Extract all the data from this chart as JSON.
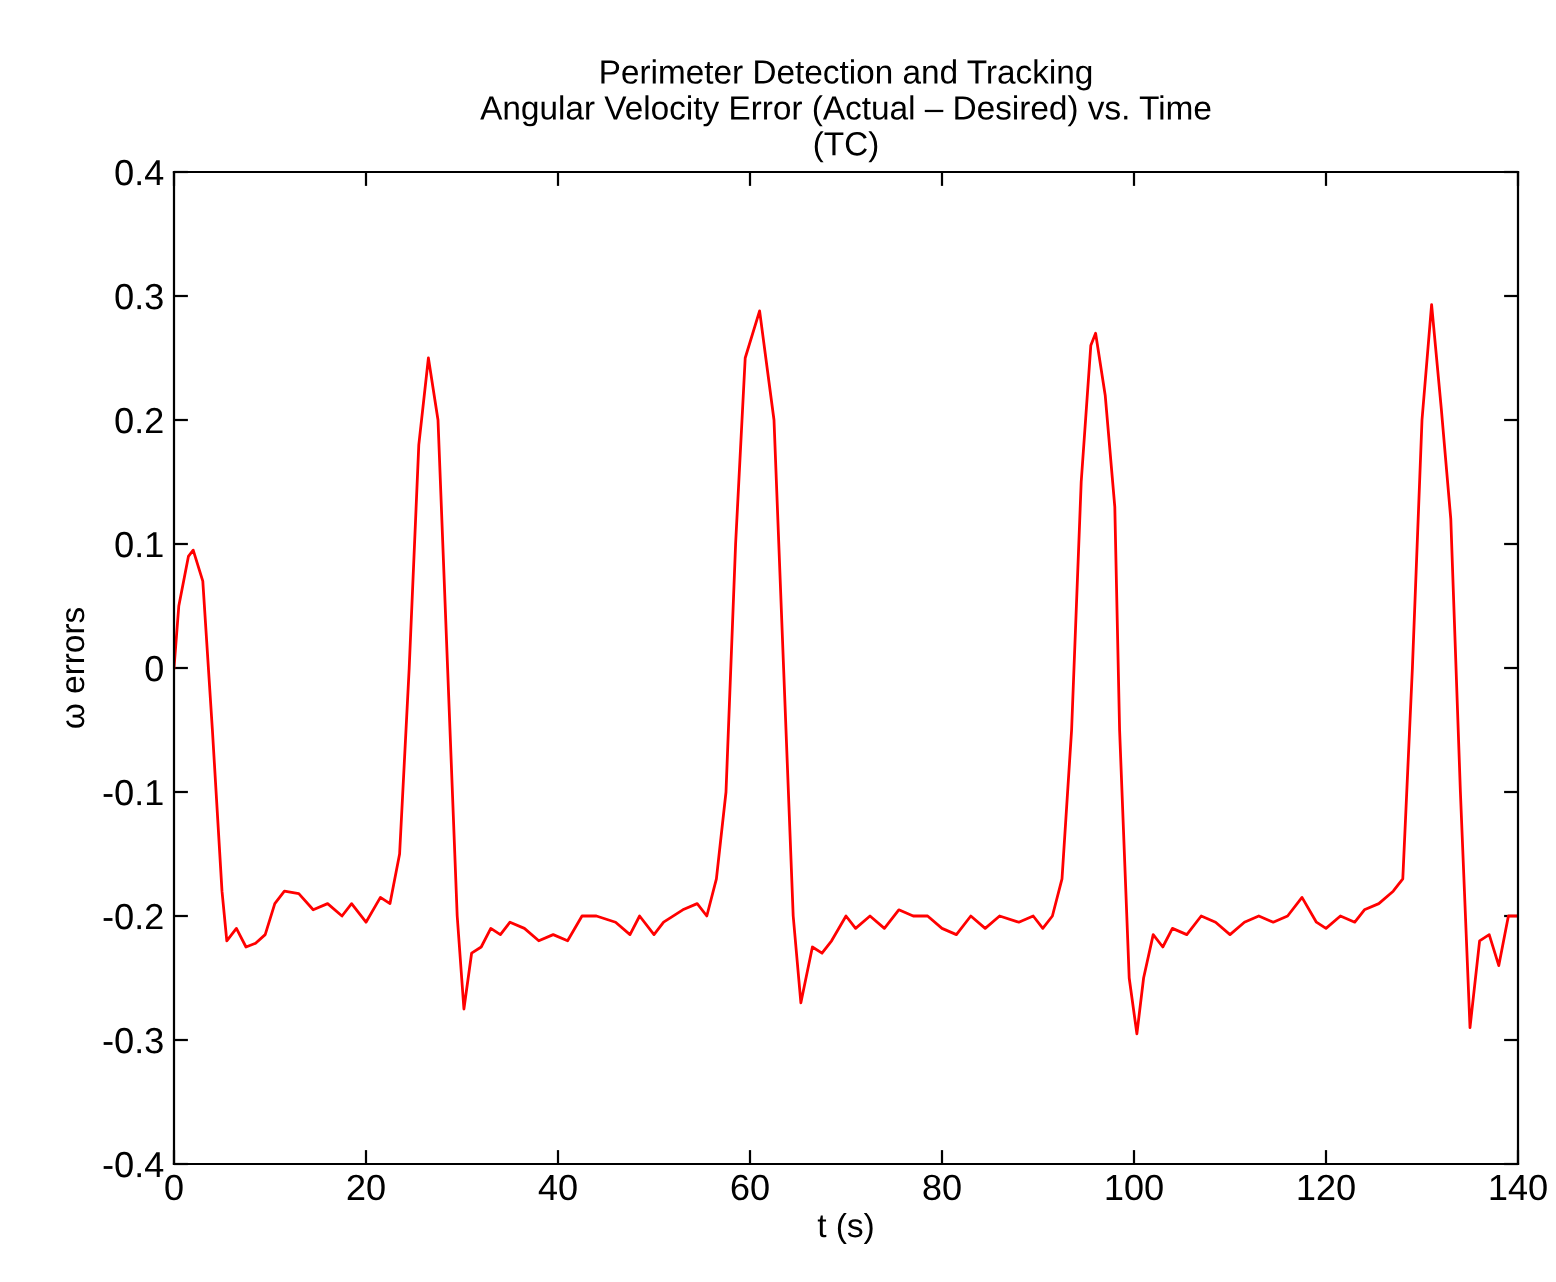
{
  "chart_data": {
    "type": "line",
    "title": "Perimeter Detection and Tracking\nAngular Velocity Error (Actual – Desired) vs. Time\n(TC)",
    "xlabel": "t (s)",
    "ylabel": "ω errors",
    "xlim": [
      0,
      140
    ],
    "ylim": [
      -0.4,
      0.4
    ],
    "xticks": [
      0,
      20,
      40,
      60,
      80,
      100,
      120,
      140
    ],
    "yticks": [
      -0.4,
      -0.3,
      -0.2,
      -0.1,
      0,
      0.1,
      0.2,
      0.3,
      0.4
    ],
    "grid": false,
    "legend": false,
    "marker": "none",
    "line_style": "solid",
    "series": [
      {
        "color": "#ff0000",
        "x": [
          0,
          0.5,
          1.5,
          2,
          3,
          4,
          5,
          5.5,
          6,
          6.5,
          7.5,
          8.5,
          9.5,
          10.5,
          11.5,
          13,
          14.5,
          16,
          17.5,
          18.5,
          20,
          21.5,
          22.5,
          23.5,
          24.5,
          25.5,
          26.5,
          27.5,
          28.5,
          29.5,
          30.2,
          31,
          32,
          33,
          34,
          35,
          36.5,
          38,
          39.5,
          41,
          42.5,
          44,
          46,
          47.5,
          48.5,
          50,
          51,
          53,
          54.5,
          55.5,
          56.5,
          57.5,
          58.5,
          59.5,
          61,
          62.5,
          63.5,
          64.5,
          65.3,
          66.5,
          67.5,
          68.5,
          70,
          71,
          72.5,
          74,
          75.5,
          77,
          78.5,
          80,
          81.5,
          83,
          84.5,
          86,
          88,
          89.5,
          90.5,
          91.5,
          92.5,
          93.5,
          94.5,
          95.5,
          96,
          97,
          98,
          98.5,
          99.5,
          100.3,
          101,
          102,
          103,
          104,
          105.5,
          107,
          108.5,
          110,
          111.5,
          113,
          114.5,
          116,
          117.5,
          119,
          120,
          121.5,
          123,
          124,
          125.5,
          127,
          128,
          129,
          130,
          131,
          132,
          133,
          134,
          135,
          136,
          137,
          138,
          139,
          140
        ],
        "values": [
          0,
          0.05,
          0.09,
          0.095,
          0.07,
          -0.05,
          -0.18,
          -0.22,
          -0.215,
          -0.21,
          -0.225,
          -0.222,
          -0.215,
          -0.19,
          -0.18,
          -0.182,
          -0.195,
          -0.19,
          -0.2,
          -0.19,
          -0.205,
          -0.185,
          -0.19,
          -0.15,
          0.0,
          0.18,
          0.25,
          0.2,
          0.0,
          -0.2,
          -0.275,
          -0.23,
          -0.225,
          -0.21,
          -0.215,
          -0.205,
          -0.21,
          -0.22,
          -0.215,
          -0.22,
          -0.2,
          -0.2,
          -0.205,
          -0.215,
          -0.2,
          -0.215,
          -0.205,
          -0.195,
          -0.19,
          -0.2,
          -0.17,
          -0.1,
          0.1,
          0.25,
          0.288,
          0.2,
          0.0,
          -0.2,
          -0.27,
          -0.225,
          -0.23,
          -0.22,
          -0.2,
          -0.21,
          -0.2,
          -0.21,
          -0.195,
          -0.2,
          -0.2,
          -0.21,
          -0.215,
          -0.2,
          -0.21,
          -0.2,
          -0.205,
          -0.2,
          -0.21,
          -0.2,
          -0.17,
          -0.05,
          0.15,
          0.26,
          0.27,
          0.22,
          0.13,
          -0.05,
          -0.25,
          -0.295,
          -0.25,
          -0.215,
          -0.225,
          -0.21,
          -0.215,
          -0.2,
          -0.205,
          -0.215,
          -0.205,
          -0.2,
          -0.205,
          -0.2,
          -0.185,
          -0.205,
          -0.21,
          -0.2,
          -0.205,
          -0.195,
          -0.19,
          -0.18,
          -0.17,
          0.0,
          0.2,
          0.293,
          0.21,
          0.12,
          -0.1,
          -0.29,
          -0.22,
          -0.215,
          -0.24,
          -0.2,
          -0.2
        ]
      }
    ]
  }
}
